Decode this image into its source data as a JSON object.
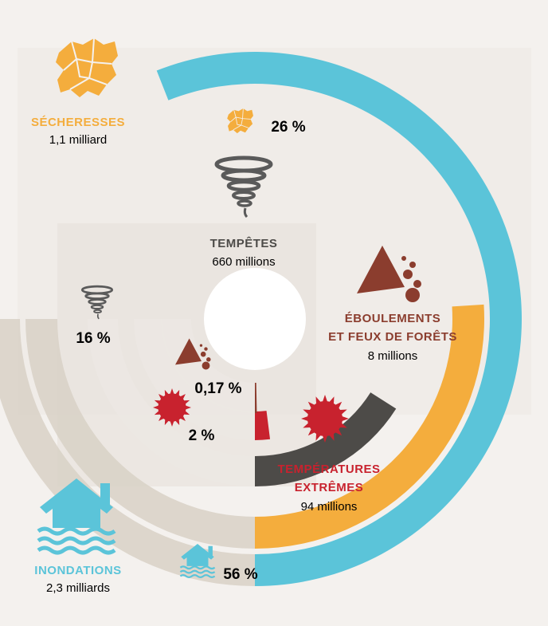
{
  "chart_data": {
    "type": "radial-bar",
    "title": "",
    "unit_note": "",
    "categories": [
      {
        "key": "inondations",
        "label": "INONDATIONS",
        "value_text": "2,3 milliards",
        "value": 2300000000,
        "percent": 56,
        "percent_text": "56 %",
        "color": "#5bc4d9",
        "icon": "house-flood-icon"
      },
      {
        "key": "secheresses",
        "label": "SÉCHERESSES",
        "value_text": "1,1 milliard",
        "value": 1100000000,
        "percent": 26,
        "percent_text": "26 %",
        "color": "#f4ad3d",
        "icon": "map-region-icon"
      },
      {
        "key": "tempetes",
        "label": "TEMPÊTES",
        "value_text": "660 millions",
        "value": 660000000,
        "percent": 16,
        "percent_text": "16 %",
        "color": "#4d4b48",
        "icon": "tornado-icon"
      },
      {
        "key": "temperatures",
        "label_lines": [
          "TEMPÉRATURES",
          "EXTRÊMES"
        ],
        "value_text": "94 millions",
        "value": 94000000,
        "percent": 2,
        "percent_text": "2 %",
        "color": "#c8222e",
        "icon": "sun-icon"
      },
      {
        "key": "eboulements",
        "label_lines": [
          "ÉBOULEMENTS",
          "ET FEUX DE FORÊTS"
        ],
        "value_text": "8 millions",
        "value": 8000000,
        "percent": 0.17,
        "percent_text": "0,17 %",
        "color": "#8b3d2e",
        "icon": "landslide-icon"
      }
    ]
  },
  "colors": {
    "background": "#f4f1ee",
    "band": "#d8d1c5",
    "band_inner": "#ece8e3",
    "text_dark": "#2b2b2b"
  }
}
